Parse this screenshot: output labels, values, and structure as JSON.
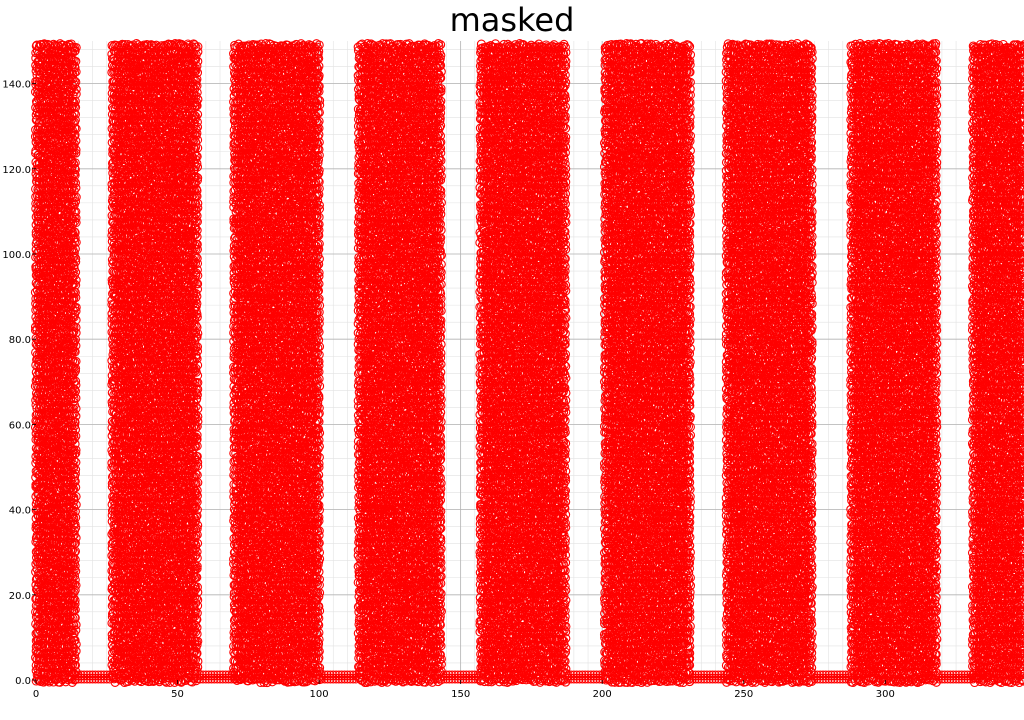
{
  "chart_data": {
    "type": "scatter",
    "title": "masked",
    "xlabel": "",
    "ylabel": "",
    "xlim": [
      0,
      349
    ],
    "ylim": [
      0,
      150
    ],
    "grid": true,
    "marker": "open-circle",
    "series": [
      {
        "color": "#ff0000",
        "segments": [
          {
            "x_start": 0,
            "x_end": 14,
            "y_min": 0,
            "y_max": 150
          },
          {
            "x_start": 14,
            "x_end": 26,
            "y_min": 0,
            "y_max": 1.5
          },
          {
            "x_start": 27,
            "x_end": 57,
            "y_min": 0,
            "y_max": 150
          },
          {
            "x_start": 58,
            "x_end": 70,
            "y_min": 0,
            "y_max": 1.5
          },
          {
            "x_start": 70,
            "x_end": 100,
            "y_min": 0,
            "y_max": 150
          },
          {
            "x_start": 101,
            "x_end": 113,
            "y_min": 0,
            "y_max": 1.5
          },
          {
            "x_start": 114,
            "x_end": 143,
            "y_min": 0,
            "y_max": 150
          },
          {
            "x_start": 144,
            "x_end": 156,
            "y_min": 0,
            "y_max": 1.5
          },
          {
            "x_start": 157,
            "x_end": 187,
            "y_min": 0,
            "y_max": 150
          },
          {
            "x_start": 188,
            "x_end": 200,
            "y_min": 0,
            "y_max": 1.5
          },
          {
            "x_start": 201,
            "x_end": 231,
            "y_min": 0,
            "y_max": 150
          },
          {
            "x_start": 232,
            "x_end": 244,
            "y_min": 0,
            "y_max": 1.5
          },
          {
            "x_start": 244,
            "x_end": 274,
            "y_min": 0,
            "y_max": 150
          },
          {
            "x_start": 275,
            "x_end": 287,
            "y_min": 0,
            "y_max": 1.5
          },
          {
            "x_start": 288,
            "x_end": 318,
            "y_min": 0,
            "y_max": 150
          },
          {
            "x_start": 319,
            "x_end": 331,
            "y_min": 0,
            "y_max": 1.5
          },
          {
            "x_start": 331,
            "x_end": 349,
            "y_min": 0,
            "y_max": 150
          }
        ]
      }
    ],
    "x_ticks": [
      {
        "value": 0,
        "label": "0"
      },
      {
        "value": 50,
        "label": "50"
      },
      {
        "value": 100,
        "label": "100"
      },
      {
        "value": 150,
        "label": "150"
      },
      {
        "value": 200,
        "label": "200"
      },
      {
        "value": 250,
        "label": "250"
      },
      {
        "value": 300,
        "label": "300"
      }
    ],
    "y_ticks": [
      {
        "value": 0,
        "label": "0.0"
      },
      {
        "value": 20,
        "label": "20.0"
      },
      {
        "value": 40,
        "label": "40.0"
      },
      {
        "value": 60,
        "label": "60.0"
      },
      {
        "value": 80,
        "label": "80.0"
      },
      {
        "value": 100,
        "label": "100.0"
      },
      {
        "value": 120,
        "label": "120.0"
      },
      {
        "value": 140,
        "label": "140.0"
      }
    ]
  }
}
